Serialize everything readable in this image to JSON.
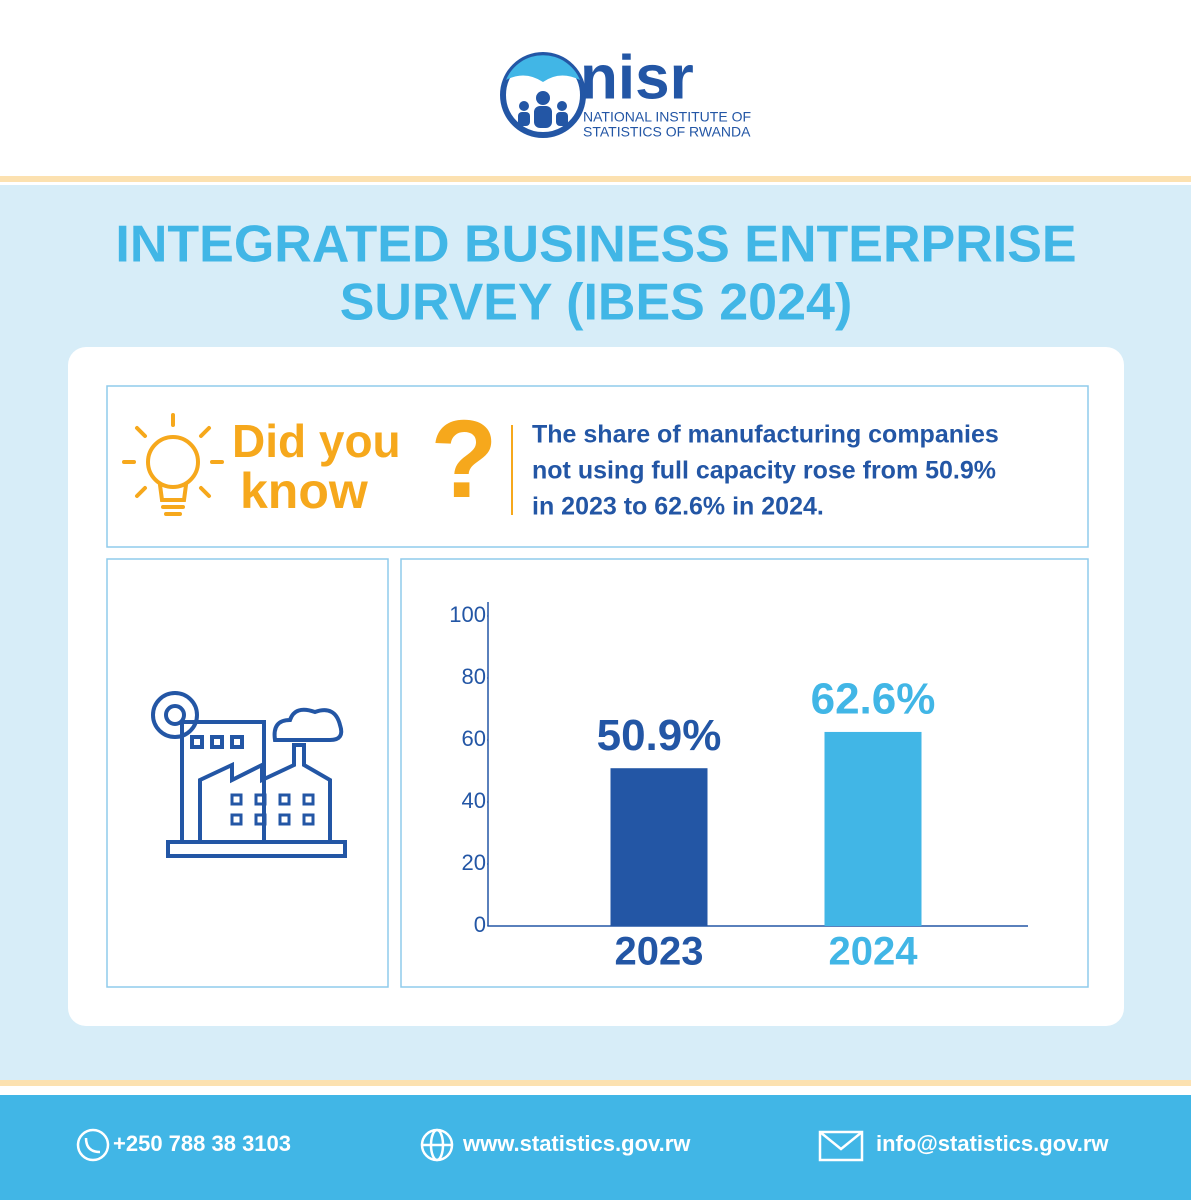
{
  "header": {
    "logo": "nisr",
    "org_line1": "NATIONAL INSTITUTE OF",
    "org_line2": "STATISTICS OF RWANDA"
  },
  "title": {
    "line1": "INTEGRATED BUSINESS ENTERPRISE",
    "line2": "SURVEY (IBES 2024)"
  },
  "did_you_know": {
    "word1": "Did you",
    "word2": "know",
    "mark": "?",
    "lines": [
      "The share of manufacturing companies",
      "not using full capacity rose from 50.9%",
      "in 2023 to 62.6% in 2024."
    ]
  },
  "chart_data": {
    "type": "bar",
    "categories": [
      "2023",
      "2024"
    ],
    "values": [
      50.9,
      62.6
    ],
    "value_labels": [
      "50.9%",
      "62.6%"
    ],
    "colors": [
      "#2356a5",
      "#41b6e6"
    ],
    "ylim": [
      0,
      100
    ],
    "yticks": [
      0,
      20,
      40,
      60,
      80,
      100
    ],
    "grid": false
  },
  "footer": {
    "phone": "+250 788 38 3103",
    "website": "www.statistics.gov.rw",
    "email": "info@statistics.gov.rw"
  }
}
